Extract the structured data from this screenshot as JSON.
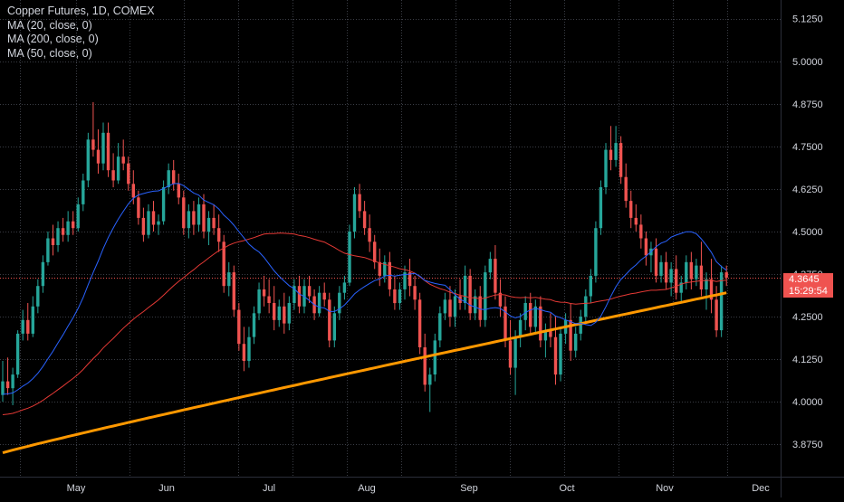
{
  "legend": {
    "title": "Copper Futures, 1D, COMEX",
    "studies": [
      "MA (20, close, 0)",
      "MA (200, close, 0)",
      "MA (50, close, 0)"
    ]
  },
  "price_label": {
    "value": "4.3645",
    "countdown": "15:29:54"
  },
  "colors": {
    "background": "#000000",
    "grid": "#3a3d45",
    "up": "#26a69a",
    "down": "#ef5350",
    "ma20": "#2962ff",
    "ma50": "#e53935",
    "ma200": "#ff9800",
    "axis_text": "#d1d4dc"
  },
  "chart_data": {
    "type": "candlestick",
    "title": "Copper Futures, 1D, COMEX",
    "y_ticks": [
      "5.1250",
      "5.0000",
      "4.8750",
      "4.7500",
      "4.6250",
      "4.5000",
      "4.3750",
      "4.2500",
      "4.1250",
      "4.0000",
      "3.8750"
    ],
    "x_ticks": [
      "May",
      "Jun",
      "Jul",
      "Aug",
      "Sep",
      "Oct",
      "Nov",
      "Dec"
    ],
    "ylim": [
      3.78,
      5.18
    ],
    "grid": true,
    "last_price": 4.3645,
    "candles": [
      [
        4.02,
        4.12,
        4.0,
        4.06
      ],
      [
        4.06,
        4.13,
        4.02,
        4.04
      ],
      [
        4.04,
        4.1,
        3.99,
        4.08
      ],
      [
        4.08,
        4.21,
        4.07,
        4.2
      ],
      [
        4.2,
        4.27,
        4.18,
        4.24
      ],
      [
        4.24,
        4.29,
        4.18,
        4.2
      ],
      [
        4.2,
        4.31,
        4.19,
        4.28
      ],
      [
        4.28,
        4.36,
        4.26,
        4.34
      ],
      [
        4.34,
        4.43,
        4.32,
        4.41
      ],
      [
        4.41,
        4.5,
        4.4,
        4.48
      ],
      [
        4.48,
        4.52,
        4.43,
        4.46
      ],
      [
        4.46,
        4.53,
        4.44,
        4.51
      ],
      [
        4.51,
        4.54,
        4.47,
        4.49
      ],
      [
        4.49,
        4.56,
        4.47,
        4.53
      ],
      [
        4.53,
        4.56,
        4.49,
        4.51
      ],
      [
        4.51,
        4.6,
        4.5,
        4.58
      ],
      [
        4.58,
        4.67,
        4.56,
        4.65
      ],
      [
        4.65,
        4.79,
        4.63,
        4.77
      ],
      [
        4.77,
        4.88,
        4.72,
        4.74
      ],
      [
        4.74,
        4.8,
        4.67,
        4.7
      ],
      [
        4.7,
        4.82,
        4.68,
        4.79
      ],
      [
        4.79,
        4.82,
        4.66,
        4.68
      ],
      [
        4.68,
        4.73,
        4.63,
        4.65
      ],
      [
        4.65,
        4.76,
        4.64,
        4.72
      ],
      [
        4.72,
        4.77,
        4.68,
        4.7
      ],
      [
        4.7,
        4.72,
        4.62,
        4.64
      ],
      [
        4.64,
        4.68,
        4.58,
        4.6
      ],
      [
        4.6,
        4.62,
        4.52,
        4.54
      ],
      [
        4.54,
        4.57,
        4.47,
        4.49
      ],
      [
        4.49,
        4.58,
        4.48,
        4.56
      ],
      [
        4.56,
        4.59,
        4.5,
        4.52
      ],
      [
        4.52,
        4.55,
        4.49,
        4.53
      ],
      [
        4.53,
        4.65,
        4.52,
        4.63
      ],
      [
        4.63,
        4.7,
        4.61,
        4.68
      ],
      [
        4.68,
        4.71,
        4.62,
        4.64
      ],
      [
        4.64,
        4.67,
        4.58,
        4.6
      ],
      [
        4.6,
        4.62,
        4.49,
        4.51
      ],
      [
        4.51,
        4.58,
        4.48,
        4.56
      ],
      [
        4.56,
        4.59,
        4.49,
        4.52
      ],
      [
        4.52,
        4.6,
        4.5,
        4.58
      ],
      [
        4.58,
        4.61,
        4.48,
        4.5
      ],
      [
        4.5,
        4.56,
        4.46,
        4.54
      ],
      [
        4.54,
        4.58,
        4.49,
        4.51
      ],
      [
        4.51,
        4.55,
        4.44,
        4.47
      ],
      [
        4.47,
        4.49,
        4.32,
        4.34
      ],
      [
        4.34,
        4.41,
        4.31,
        4.38
      ],
      [
        4.38,
        4.4,
        4.25,
        4.27
      ],
      [
        4.27,
        4.29,
        4.15,
        4.17
      ],
      [
        4.17,
        4.22,
        4.09,
        4.12
      ],
      [
        4.12,
        4.22,
        4.1,
        4.19
      ],
      [
        4.19,
        4.28,
        4.17,
        4.26
      ],
      [
        4.26,
        4.35,
        4.24,
        4.33
      ],
      [
        4.33,
        4.37,
        4.28,
        4.31
      ],
      [
        4.31,
        4.36,
        4.26,
        4.29
      ],
      [
        4.29,
        4.34,
        4.21,
        4.24
      ],
      [
        4.24,
        4.3,
        4.22,
        4.28
      ],
      [
        4.28,
        4.32,
        4.2,
        4.23
      ],
      [
        4.23,
        4.31,
        4.21,
        4.29
      ],
      [
        4.29,
        4.36,
        4.27,
        4.34
      ],
      [
        4.34,
        4.37,
        4.26,
        4.28
      ],
      [
        4.28,
        4.36,
        4.26,
        4.34
      ],
      [
        4.34,
        4.37,
        4.29,
        4.31
      ],
      [
        4.31,
        4.33,
        4.24,
        4.26
      ],
      [
        4.26,
        4.34,
        4.25,
        4.32
      ],
      [
        4.32,
        4.35,
        4.28,
        4.3
      ],
      [
        4.3,
        4.32,
        4.16,
        4.18
      ],
      [
        4.18,
        4.28,
        4.16,
        4.26
      ],
      [
        4.26,
        4.34,
        4.24,
        4.32
      ],
      [
        4.32,
        4.37,
        4.3,
        4.35
      ],
      [
        4.35,
        4.52,
        4.34,
        4.5
      ],
      [
        4.5,
        4.63,
        4.48,
        4.61
      ],
      [
        4.61,
        4.64,
        4.54,
        4.56
      ],
      [
        4.56,
        4.59,
        4.49,
        4.51
      ],
      [
        4.51,
        4.55,
        4.44,
        4.47
      ],
      [
        4.47,
        4.49,
        4.39,
        4.41
      ],
      [
        4.41,
        4.45,
        4.34,
        4.37
      ],
      [
        4.37,
        4.43,
        4.35,
        4.41
      ],
      [
        4.41,
        4.44,
        4.31,
        4.33
      ],
      [
        4.33,
        4.37,
        4.27,
        4.29
      ],
      [
        4.29,
        4.35,
        4.27,
        4.33
      ],
      [
        4.33,
        4.4,
        4.3,
        4.38
      ],
      [
        4.38,
        4.42,
        4.31,
        4.34
      ],
      [
        4.34,
        4.37,
        4.27,
        4.3
      ],
      [
        4.3,
        4.32,
        4.14,
        4.16
      ],
      [
        4.16,
        4.2,
        4.03,
        4.05
      ],
      [
        4.05,
        4.1,
        3.97,
        4.08
      ],
      [
        4.08,
        4.2,
        4.06,
        4.18
      ],
      [
        4.18,
        4.28,
        4.16,
        4.26
      ],
      [
        4.26,
        4.32,
        4.24,
        4.3
      ],
      [
        4.3,
        4.34,
        4.22,
        4.25
      ],
      [
        4.25,
        4.33,
        4.22,
        4.31
      ],
      [
        4.31,
        4.36,
        4.27,
        4.29
      ],
      [
        4.29,
        4.4,
        4.27,
        4.37
      ],
      [
        4.37,
        4.39,
        4.24,
        4.26
      ],
      [
        4.26,
        4.33,
        4.24,
        4.31
      ],
      [
        4.31,
        4.34,
        4.22,
        4.24
      ],
      [
        4.24,
        4.4,
        4.22,
        4.38
      ],
      [
        4.38,
        4.44,
        4.36,
        4.42
      ],
      [
        4.42,
        4.46,
        4.3,
        4.32
      ],
      [
        4.32,
        4.36,
        4.25,
        4.28
      ],
      [
        4.28,
        4.31,
        4.16,
        4.18
      ],
      [
        4.18,
        4.24,
        4.08,
        4.1
      ],
      [
        4.1,
        4.21,
        4.02,
        4.19
      ],
      [
        4.19,
        4.26,
        4.16,
        4.24
      ],
      [
        4.24,
        4.31,
        4.21,
        4.29
      ],
      [
        4.29,
        4.32,
        4.2,
        4.22
      ],
      [
        4.22,
        4.3,
        4.2,
        4.28
      ],
      [
        4.28,
        4.31,
        4.16,
        4.18
      ],
      [
        4.18,
        4.23,
        4.13,
        4.21
      ],
      [
        4.21,
        4.26,
        4.16,
        4.19
      ],
      [
        4.19,
        4.25,
        4.05,
        4.08
      ],
      [
        4.08,
        4.22,
        4.06,
        4.2
      ],
      [
        4.2,
        4.26,
        4.17,
        4.24
      ],
      [
        4.24,
        4.29,
        4.12,
        4.15
      ],
      [
        4.15,
        4.22,
        4.13,
        4.2
      ],
      [
        4.2,
        4.27,
        4.18,
        4.25
      ],
      [
        4.25,
        4.33,
        4.23,
        4.31
      ],
      [
        4.31,
        4.39,
        4.29,
        4.37
      ],
      [
        4.37,
        4.53,
        4.35,
        4.51
      ],
      [
        4.51,
        4.65,
        4.49,
        4.63
      ],
      [
        4.63,
        4.76,
        4.61,
        4.74
      ],
      [
        4.74,
        4.81,
        4.68,
        4.71
      ],
      [
        4.71,
        4.81,
        4.69,
        4.76
      ],
      [
        4.76,
        4.78,
        4.64,
        4.66
      ],
      [
        4.66,
        4.7,
        4.57,
        4.59
      ],
      [
        4.59,
        4.62,
        4.51,
        4.54
      ],
      [
        4.54,
        4.58,
        4.5,
        4.52
      ],
      [
        4.52,
        4.55,
        4.45,
        4.48
      ],
      [
        4.48,
        4.5,
        4.4,
        4.43
      ],
      [
        4.43,
        4.47,
        4.38,
        4.45
      ],
      [
        4.45,
        4.48,
        4.35,
        4.37
      ],
      [
        4.37,
        4.43,
        4.35,
        4.41
      ],
      [
        4.41,
        4.44,
        4.33,
        4.35
      ],
      [
        4.35,
        4.41,
        4.31,
        4.39
      ],
      [
        4.39,
        4.43,
        4.3,
        4.32
      ],
      [
        4.32,
        4.37,
        4.29,
        4.35
      ],
      [
        4.35,
        4.43,
        4.33,
        4.41
      ],
      [
        4.41,
        4.44,
        4.33,
        4.36
      ],
      [
        4.36,
        4.42,
        4.34,
        4.4
      ],
      [
        4.4,
        4.47,
        4.31,
        4.33
      ],
      [
        4.33,
        4.38,
        4.27,
        4.36
      ],
      [
        4.36,
        4.42,
        4.26,
        4.3
      ],
      [
        4.3,
        4.34,
        4.19,
        4.21
      ],
      [
        4.21,
        4.4,
        4.19,
        4.38
      ],
      [
        4.38,
        4.4,
        4.34,
        4.3645
      ]
    ],
    "series": [
      {
        "name": "MA (20, close, 0)",
        "period": 20
      },
      {
        "name": "MA (200, close, 0)",
        "period": 200,
        "seed_start": 3.85,
        "seed_end": 4.32
      },
      {
        "name": "MA (50, close, 0)",
        "period": 50,
        "seed_prev": 3.96
      }
    ]
  }
}
